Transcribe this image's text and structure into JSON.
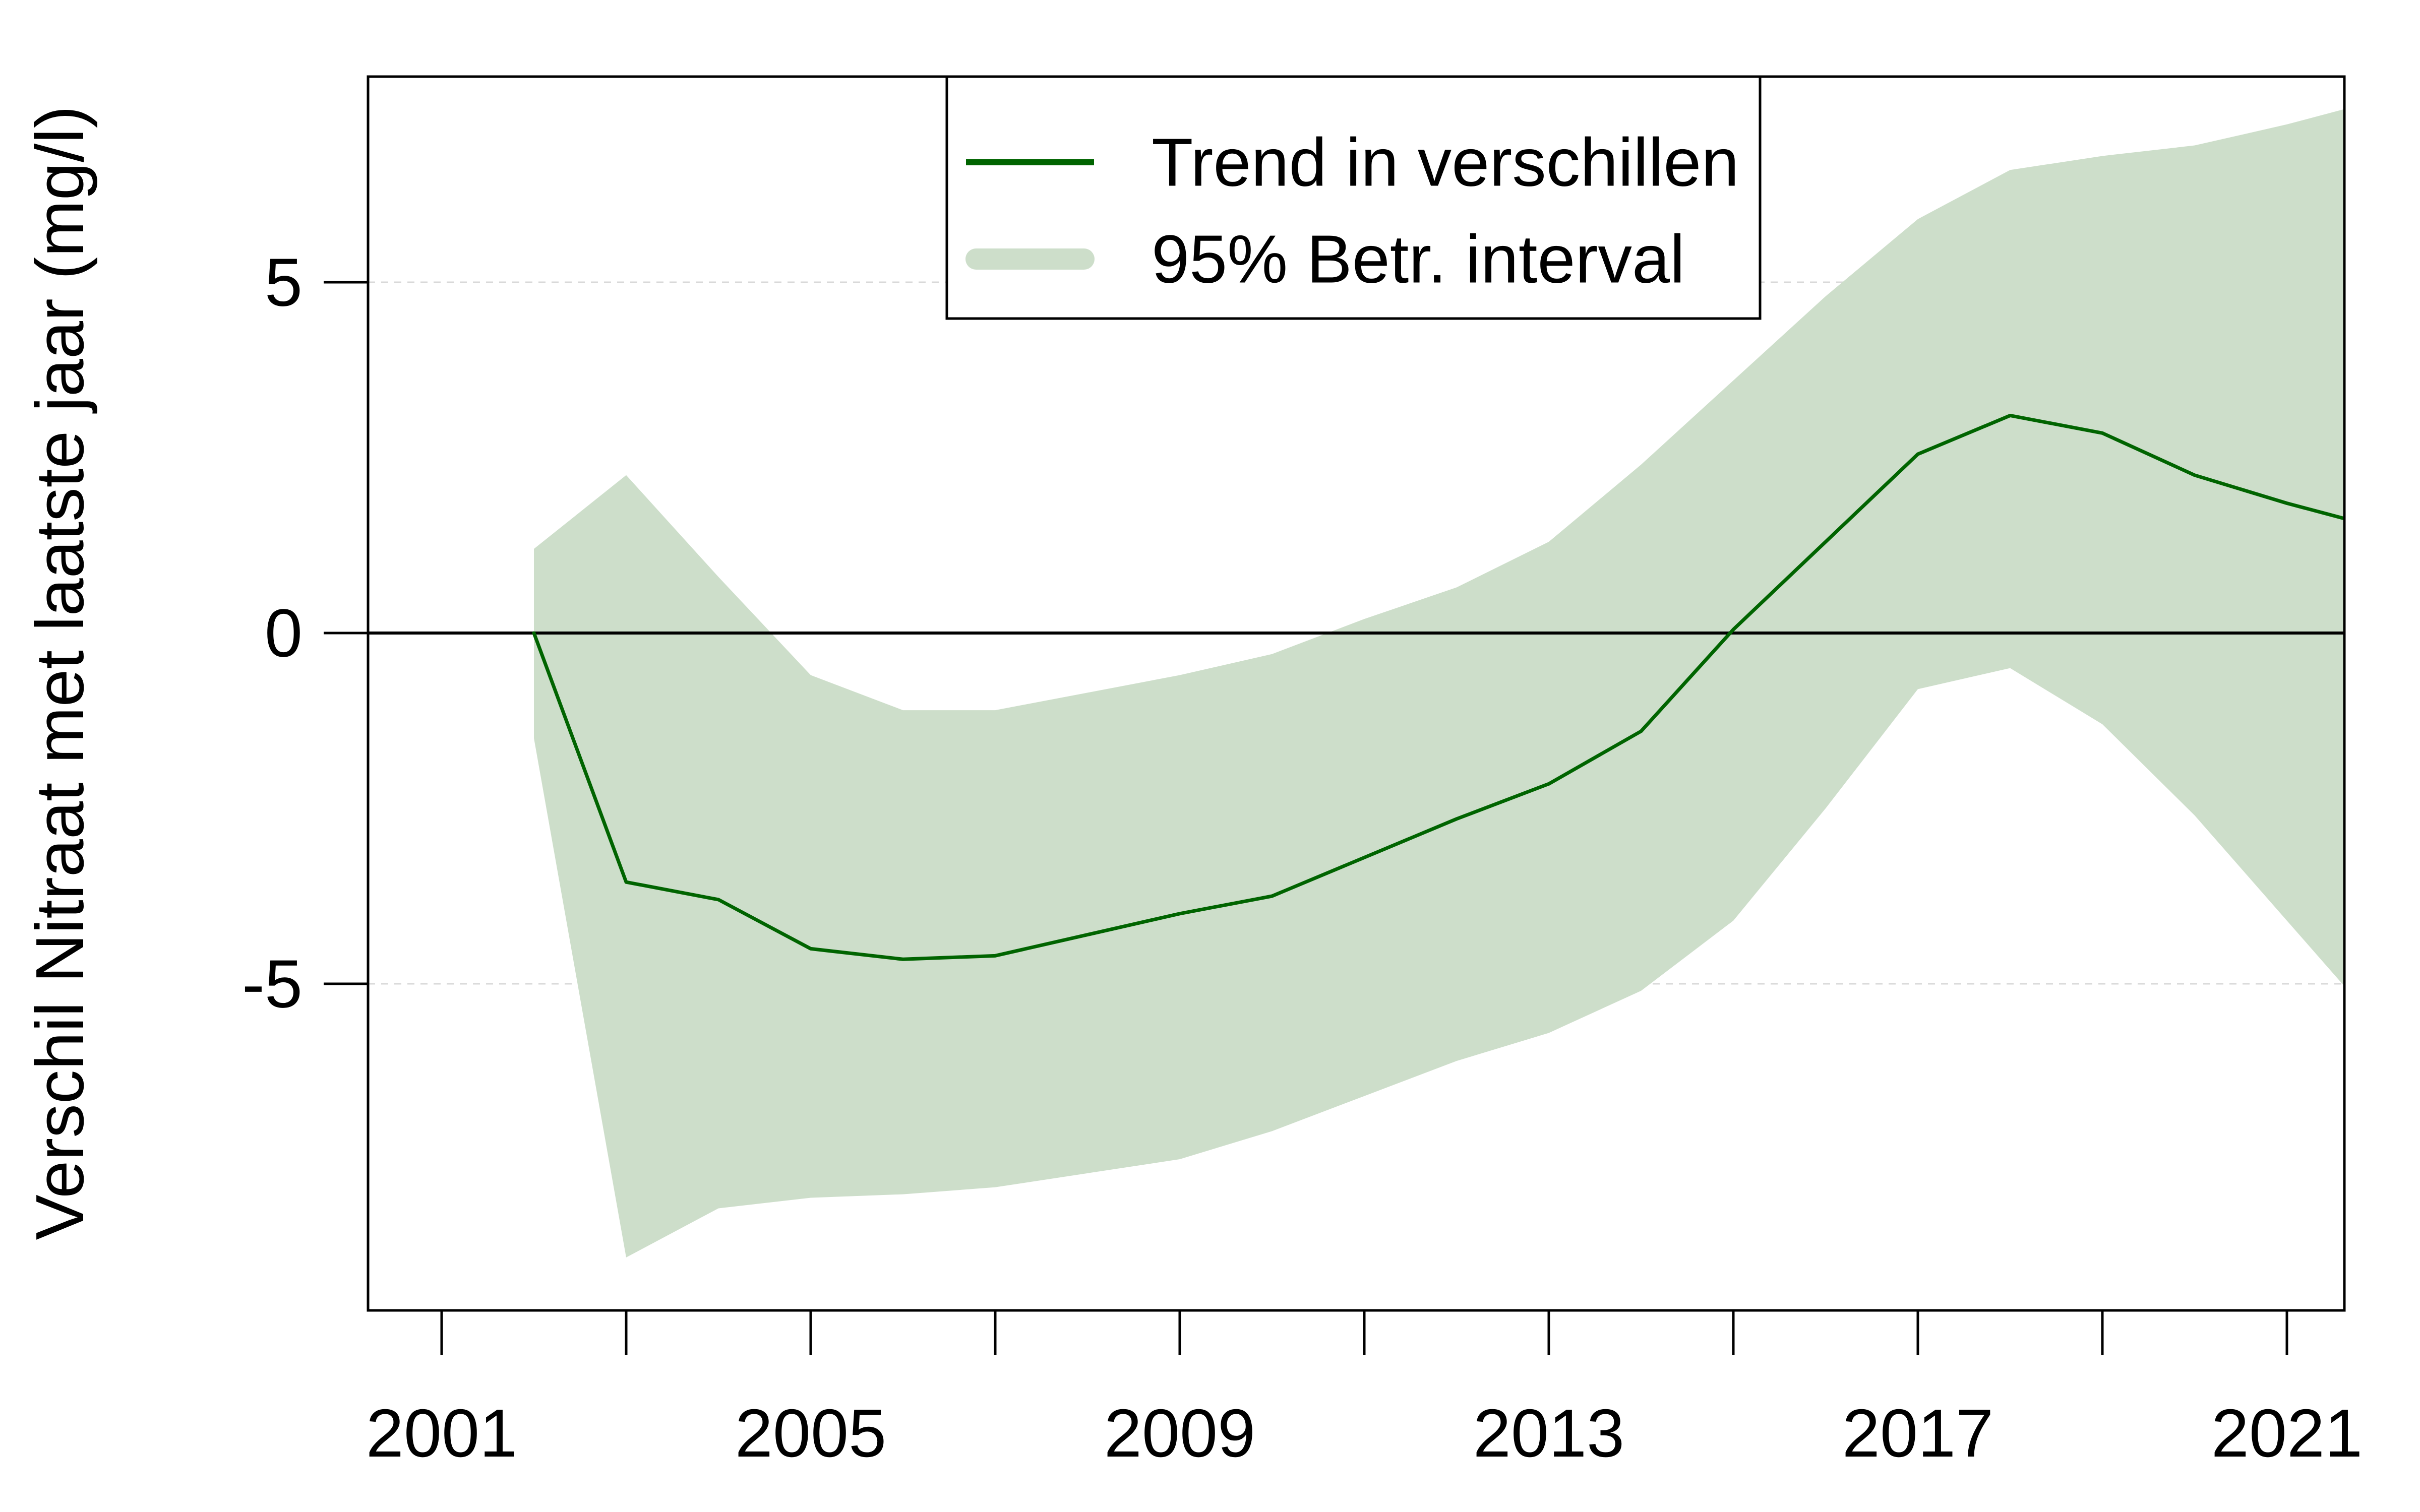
{
  "figure": {
    "background": "#ffffff"
  },
  "colors": {
    "trend_line": "#006400",
    "confidence_band": "#cddeca",
    "gridline": "#d9d9d9",
    "axis": "#000000",
    "legend_background": "#ffffff"
  },
  "chart_data": {
    "type": "line",
    "title": "",
    "xlabel": "",
    "ylabel": "Verschil Nitraat met laatste jaar (mg/l)",
    "x": [
      2002,
      2003,
      2004,
      2005,
      2006,
      2007,
      2008,
      2009,
      2010,
      2011,
      2012,
      2013,
      2014,
      2015,
      2016,
      2017,
      2018,
      2019,
      2020,
      2021,
      2022
    ],
    "series": [
      {
        "name": "Trend in verschillen",
        "type": "line",
        "color": "#006400",
        "values": [
          0.0,
          -3.55,
          -3.8,
          -4.5,
          -4.65,
          -4.6,
          -4.3,
          -4.0,
          -3.75,
          -3.2,
          -2.65,
          -2.15,
          -1.4,
          0.05,
          1.3,
          2.55,
          3.1,
          2.85,
          2.25,
          1.85,
          1.5
        ]
      },
      {
        "name": "95% Betr. interval",
        "type": "band",
        "color": "#cddeca",
        "lower": [
          -1.5,
          -8.9,
          -8.2,
          -8.05,
          -8.0,
          -7.9,
          -7.7,
          -7.5,
          -7.1,
          -6.6,
          -6.1,
          -5.7,
          -5.1,
          -4.1,
          -2.5,
          -0.8,
          -0.5,
          -1.3,
          -2.6,
          -4.1,
          -5.6
        ],
        "upper": [
          1.2,
          2.25,
          0.8,
          -0.6,
          -1.1,
          -1.1,
          -0.85,
          -0.6,
          -0.3,
          0.2,
          0.65,
          1.3,
          2.4,
          3.6,
          4.8,
          5.9,
          6.6,
          6.8,
          6.95,
          7.25,
          7.6
        ]
      }
    ],
    "xlim": [
      2000.2,
      2021.62
    ],
    "ylim": [
      -9.65,
      7.95
    ],
    "zero_line": 0,
    "grid": "dashed-at-5-and-minus-5",
    "gridline_values": [
      5,
      -5
    ],
    "legend_position": "top-left-inside",
    "x_ticks_years": [
      2001,
      2003,
      2005,
      2007,
      2009,
      2011,
      2013,
      2015,
      2017,
      2019,
      2021
    ],
    "x_labeled_years": [
      2001,
      2005,
      2009,
      2013,
      2017,
      2021
    ],
    "x_tick_labels": [
      "2001",
      "2005",
      "2009",
      "2013",
      "2017",
      "2021"
    ],
    "y_ticks": [
      {
        "value": 5,
        "label": "5"
      },
      {
        "value": 0,
        "label": "0"
      },
      {
        "value": -5,
        "label": "-5"
      }
    ]
  },
  "legend": {
    "items": [
      {
        "label": "Trend in verschillen",
        "swatch": "line-swatch"
      },
      {
        "label": "95% Betr. interval",
        "swatch": "band-swatch"
      }
    ]
  }
}
